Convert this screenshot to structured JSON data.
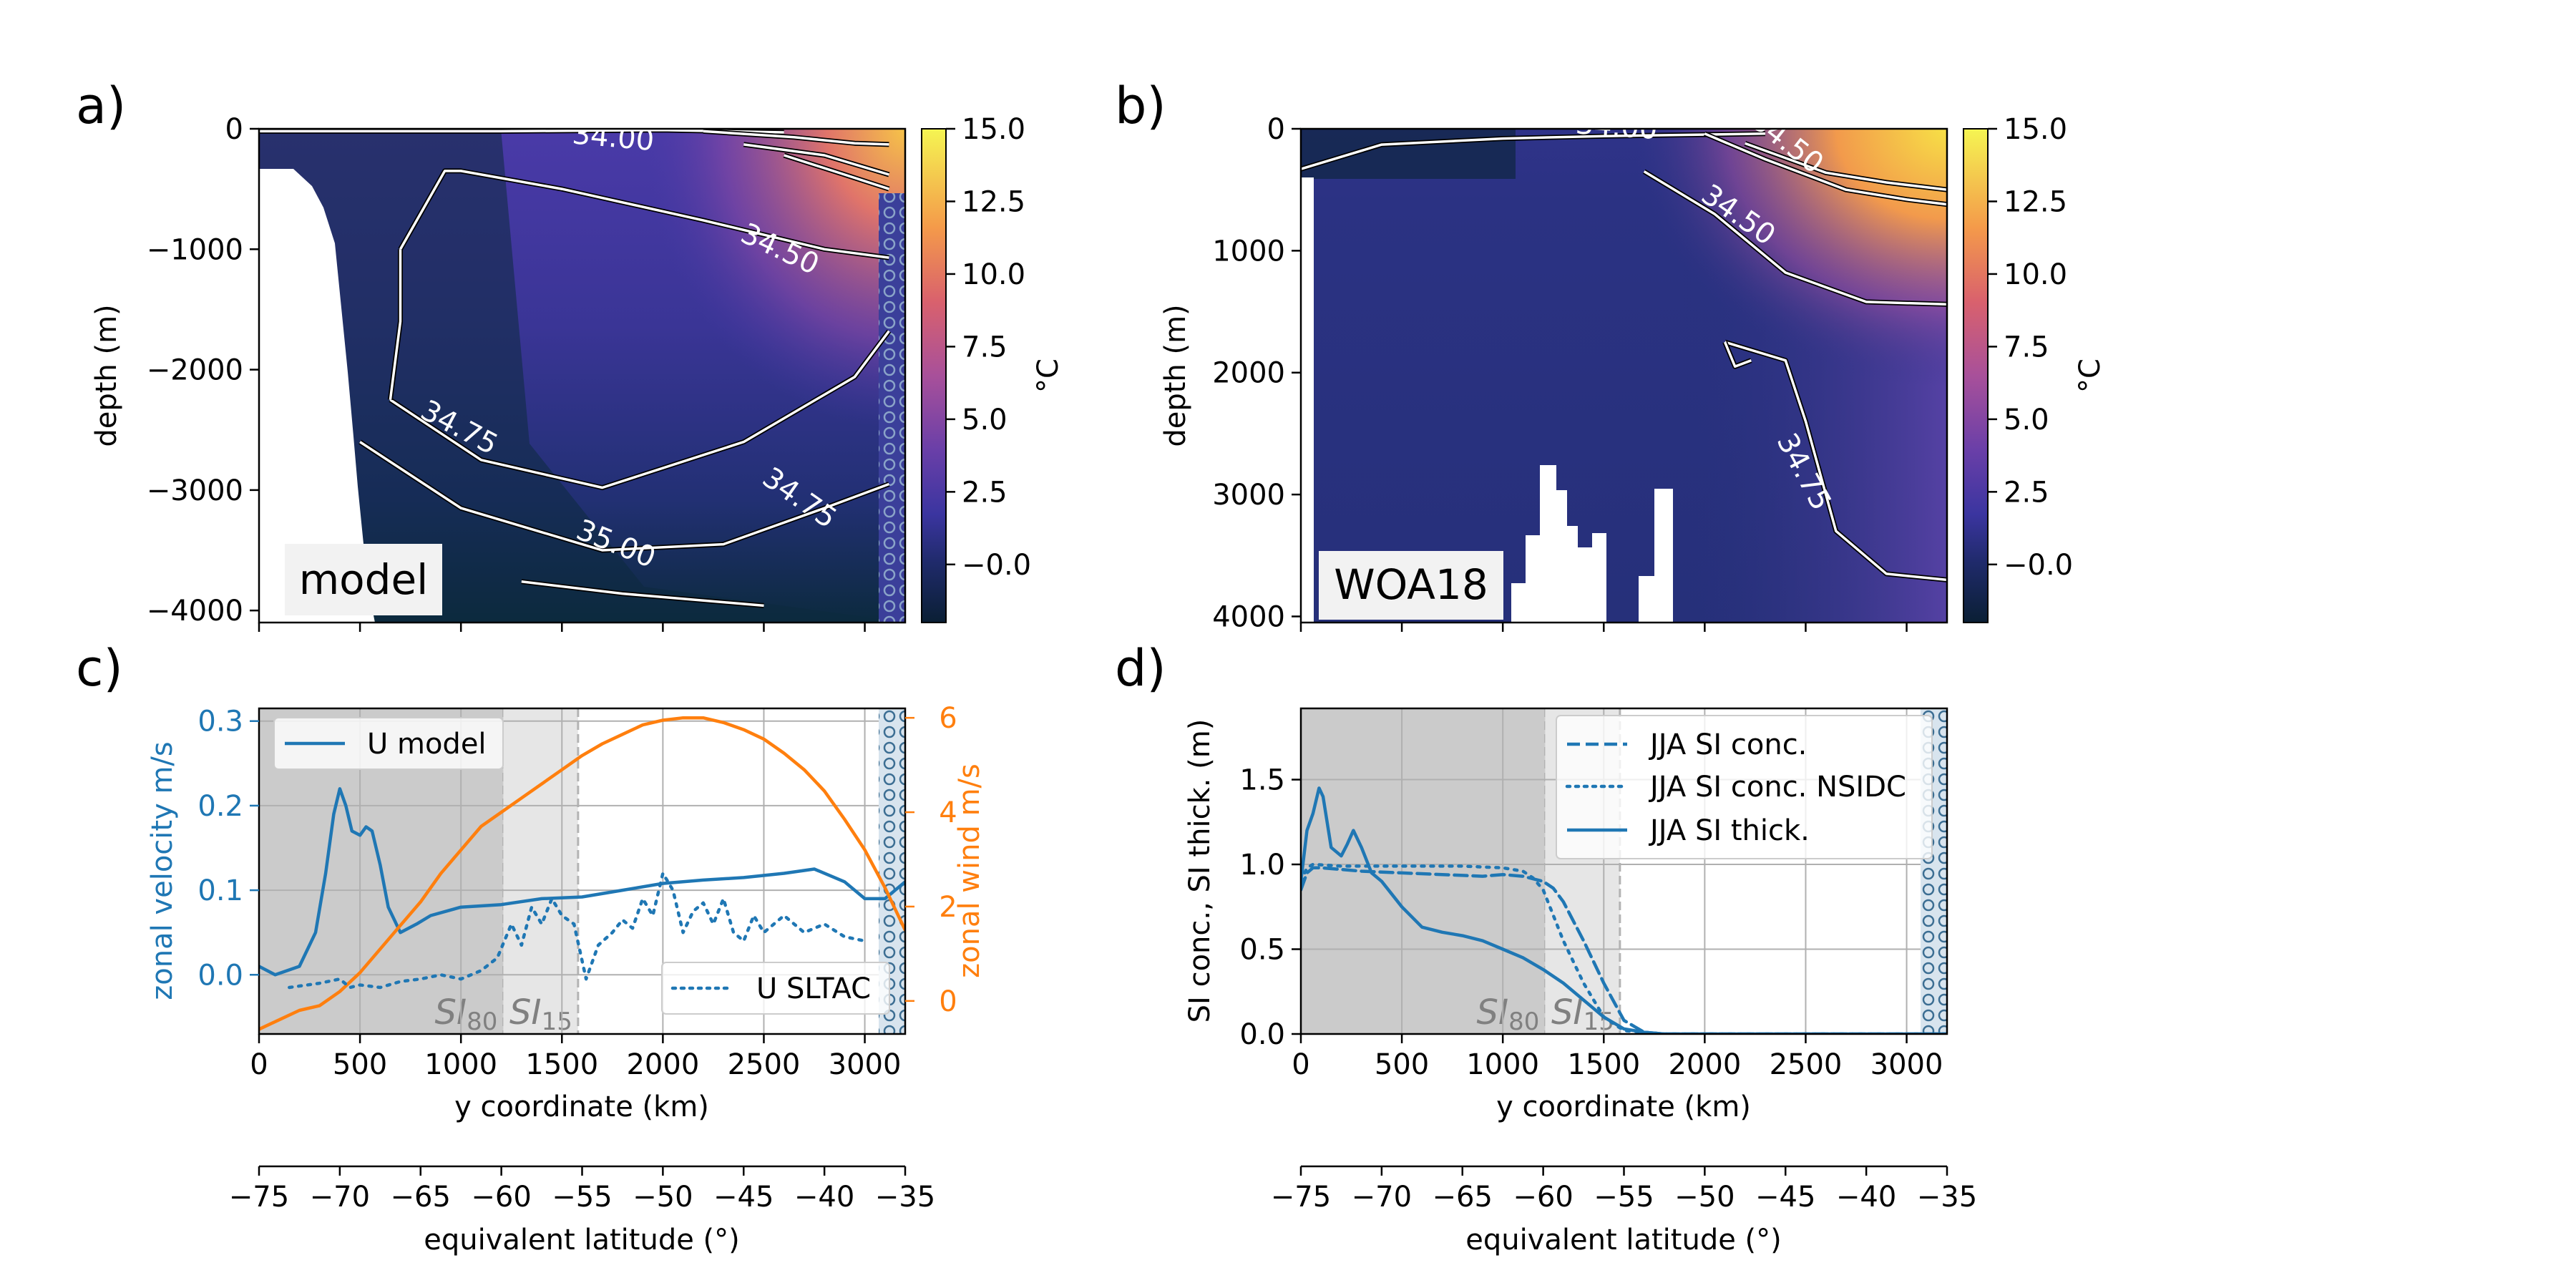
{
  "chart_data": [
    {
      "panel": "a)",
      "type": "heatmap",
      "inset_label": "model",
      "ylabel": "depth (m)",
      "xlim": [
        0,
        3200
      ],
      "ylim": [
        -4100,
        0
      ],
      "yticks": [
        0,
        -1000,
        -2000,
        -3000,
        -4000
      ],
      "ytick_labels": [
        "0",
        "−1000",
        "−2000",
        "−3000",
        "−4000"
      ],
      "colorbar": {
        "label": "°C",
        "range": [
          -2,
          15
        ],
        "ticks": [
          "−0.0",
          "2.5",
          "5.0",
          "7.5",
          "10.0",
          "12.5",
          "15.0"
        ],
        "tick_values": [
          0,
          2.5,
          5,
          7.5,
          10,
          12.5,
          15
        ]
      },
      "contour_labels": [
        {
          "text": "34.00",
          "x": 1750,
          "y": -150,
          "rot": 5
        },
        {
          "text": "34.50",
          "x": 2560,
          "y": -1070,
          "rot": 25
        },
        {
          "text": "34.75",
          "x": 970,
          "y": -2550,
          "rot": 28
        },
        {
          "text": "34.75",
          "x": 2650,
          "y": -3130,
          "rot": 35
        },
        {
          "text": "35.00",
          "x": 1750,
          "y": -3520,
          "rot": 22
        }
      ],
      "contours": [
        [
          [
            0,
            -20
          ],
          [
            500,
            -20
          ],
          [
            1200,
            -20
          ],
          [
            2000,
            -10
          ],
          [
            2600,
            -30
          ]
        ],
        [
          [
            2200,
            -20
          ],
          [
            2650,
            -70
          ],
          [
            2950,
            -120
          ],
          [
            3120,
            -130
          ]
        ],
        [
          [
            2400,
            -130
          ],
          [
            2800,
            -220
          ],
          [
            3000,
            -320
          ],
          [
            3120,
            -380
          ]
        ],
        [
          [
            2600,
            -220
          ],
          [
            2900,
            -380
          ],
          [
            3120,
            -500
          ]
        ],
        [
          [
            700,
            -1000
          ],
          [
            920,
            -350
          ],
          [
            1000,
            -350
          ],
          [
            1500,
            -500
          ],
          [
            2200,
            -760
          ],
          [
            2800,
            -1000
          ],
          [
            3120,
            -1070
          ]
        ],
        [
          [
            650,
            -2250
          ],
          [
            1100,
            -2750
          ],
          [
            1700,
            -2980
          ],
          [
            2400,
            -2600
          ],
          [
            2950,
            -2060
          ],
          [
            3120,
            -1680
          ]
        ],
        [
          [
            700,
            -1000
          ],
          [
            700,
            -1600
          ],
          [
            650,
            -2250
          ]
        ],
        [
          [
            500,
            -2600
          ],
          [
            1000,
            -3150
          ],
          [
            1700,
            -3500
          ],
          [
            2300,
            -3450
          ],
          [
            2800,
            -3150
          ],
          [
            3120,
            -2950
          ]
        ],
        [
          [
            1300,
            -3760
          ],
          [
            1800,
            -3860
          ],
          [
            2500,
            -3960
          ]
        ]
      ]
    },
    {
      "panel": "b)",
      "type": "heatmap",
      "inset_label": "WOA18",
      "ylabel": "depth (m)",
      "xlim": [
        0,
        3200
      ],
      "ylim": [
        4050,
        0
      ],
      "yticks": [
        0,
        1000,
        2000,
        3000,
        4000
      ],
      "ytick_labels": [
        "0",
        "1000",
        "2000",
        "3000",
        "4000"
      ],
      "colorbar": {
        "label": "°C",
        "range": [
          -2,
          15
        ],
        "ticks": [
          "−0.0",
          "2.5",
          "5.0",
          "7.5",
          "10.0",
          "12.5",
          "15.0"
        ],
        "tick_values": [
          0,
          2.5,
          5,
          7.5,
          10,
          12.5,
          15
        ]
      },
      "contour_labels": [
        {
          "text": "34.00",
          "x": 1560,
          "y": 60,
          "rot": 4
        },
        {
          "text": "34.50",
          "x": 2380,
          "y": 170,
          "rot": 38
        },
        {
          "text": "34.50",
          "x": 2140,
          "y": 770,
          "rot": 35
        },
        {
          "text": "34.75",
          "x": 2450,
          "y": 2850,
          "rot": 62
        }
      ],
      "contours": [
        [
          [
            0,
            330
          ],
          [
            400,
            130
          ],
          [
            1000,
            80
          ],
          [
            1500,
            60
          ],
          [
            1900,
            50
          ],
          [
            2300,
            40
          ]
        ],
        [
          [
            2000,
            40
          ],
          [
            2300,
            250
          ],
          [
            2700,
            500
          ],
          [
            3000,
            580
          ],
          [
            3200,
            620
          ]
        ],
        [
          [
            2200,
            120
          ],
          [
            2600,
            360
          ],
          [
            2900,
            440
          ],
          [
            3200,
            500
          ]
        ],
        [
          [
            1700,
            350
          ],
          [
            2050,
            700
          ],
          [
            2400,
            1180
          ],
          [
            2800,
            1420
          ],
          [
            3200,
            1440
          ]
        ],
        [
          [
            2100,
            1750
          ],
          [
            2400,
            1900
          ],
          [
            2500,
            2400
          ],
          [
            2650,
            3300
          ],
          [
            2900,
            3650
          ],
          [
            3200,
            3700
          ]
        ],
        [
          [
            2100,
            1750
          ],
          [
            2150,
            1950
          ],
          [
            2230,
            1900
          ]
        ]
      ]
    },
    {
      "panel": "c)",
      "type": "line",
      "xlabel": "y coordinate (km)",
      "ylabel": "zonal velocity m/s",
      "ylabel_right": "zonal wind m/s",
      "xlim": [
        0,
        3200
      ],
      "ylim": [
        -0.07,
        0.315
      ],
      "ylim_right": [
        -0.7,
        6.2
      ],
      "xticks": [
        0,
        500,
        1000,
        1500,
        2000,
        2500,
        3000
      ],
      "yticks": [
        0.0,
        0.1,
        0.2,
        0.3
      ],
      "ytick_labels": [
        "0.0",
        "0.1",
        "0.2",
        "0.3"
      ],
      "yticks_right": [
        0,
        2,
        4,
        6
      ],
      "shading": [
        {
          "label": "SI",
          "sub": "80",
          "x": [
            0,
            1210
          ]
        },
        {
          "label": "SI",
          "sub": "15",
          "x": [
            1210,
            1580
          ]
        }
      ],
      "grid": true,
      "legend": [
        {
          "name": "U model",
          "placement": "top-left"
        },
        {
          "name": "U SLTAC",
          "placement": "bottom-right"
        }
      ],
      "series": [
        {
          "name": "U model",
          "axis": "left",
          "color": "#1f77b4",
          "dash": "solid",
          "x": [
            0,
            80,
            200,
            280,
            330,
            370,
            400,
            430,
            460,
            500,
            530,
            560,
            600,
            640,
            700,
            780,
            850,
            1000,
            1200,
            1400,
            1600,
            1800,
            2000,
            2200,
            2400,
            2600,
            2750,
            2900,
            3000,
            3100,
            3200
          ],
          "y": [
            0.01,
            0.0,
            0.01,
            0.05,
            0.12,
            0.19,
            0.22,
            0.2,
            0.17,
            0.165,
            0.175,
            0.17,
            0.13,
            0.08,
            0.05,
            0.06,
            0.07,
            0.08,
            0.083,
            0.09,
            0.092,
            0.1,
            0.108,
            0.112,
            0.115,
            0.12,
            0.125,
            0.11,
            0.09,
            0.09,
            0.11
          ]
        },
        {
          "name": "zonal wind",
          "axis": "right",
          "color": "#ff7f0e",
          "dash": "solid",
          "x": [
            0,
            100,
            200,
            300,
            400,
            500,
            600,
            700,
            800,
            900,
            1000,
            1100,
            1200,
            1300,
            1400,
            1500,
            1600,
            1700,
            1800,
            1900,
            2000,
            2100,
            2200,
            2300,
            2400,
            2500,
            2600,
            2700,
            2800,
            2900,
            3000,
            3100,
            3200
          ],
          "y": [
            -0.6,
            -0.4,
            -0.2,
            -0.1,
            0.2,
            0.6,
            1.1,
            1.6,
            2.1,
            2.7,
            3.2,
            3.7,
            4.0,
            4.3,
            4.6,
            4.9,
            5.2,
            5.45,
            5.65,
            5.85,
            5.95,
            6.0,
            6.0,
            5.9,
            5.75,
            5.55,
            5.25,
            4.9,
            4.45,
            3.85,
            3.2,
            2.4,
            1.5
          ]
        },
        {
          "name": "U SLTAC",
          "axis": "left",
          "color": "#1f77b4",
          "dash": "dotted",
          "x": [
            150,
            300,
            400,
            450,
            500,
            600,
            700,
            800,
            900,
            1000,
            1100,
            1180,
            1250,
            1300,
            1350,
            1400,
            1450,
            1500,
            1560,
            1620,
            1680,
            1750,
            1800,
            1850,
            1900,
            1950,
            2000,
            2050,
            2100,
            2150,
            2200,
            2250,
            2300,
            2350,
            2400,
            2450,
            2500,
            2600,
            2700,
            2800,
            2900,
            3000
          ],
          "y": [
            -0.015,
            -0.01,
            -0.005,
            -0.015,
            -0.012,
            -0.015,
            -0.008,
            -0.005,
            0.0,
            -0.005,
            0.005,
            0.02,
            0.06,
            0.035,
            0.08,
            0.06,
            0.09,
            0.07,
            0.06,
            -0.005,
            0.035,
            0.05,
            0.065,
            0.055,
            0.09,
            0.07,
            0.12,
            0.1,
            0.05,
            0.075,
            0.085,
            0.06,
            0.09,
            0.05,
            0.04,
            0.07,
            0.05,
            0.07,
            0.05,
            0.06,
            0.045,
            0.04
          ]
        }
      ]
    },
    {
      "panel": "d)",
      "type": "line",
      "xlabel": "y coordinate (km)",
      "ylabel": "SI conc., SI thick. (m)",
      "xlim": [
        0,
        3200
      ],
      "ylim": [
        0,
        1.92
      ],
      "xticks": [
        0,
        500,
        1000,
        1500,
        2000,
        2500,
        3000
      ],
      "yticks": [
        0.0,
        0.5,
        1.0,
        1.5
      ],
      "ytick_labels": [
        "0.0",
        "0.5",
        "1.0",
        "1.5"
      ],
      "shading": [
        {
          "label": "SI",
          "sub": "80",
          "x": [
            0,
            1210
          ]
        },
        {
          "label": "SI",
          "sub": "15",
          "x": [
            1210,
            1580
          ]
        }
      ],
      "grid": true,
      "legend_placement": "top-right",
      "series": [
        {
          "name": "JJA SI conc.",
          "color": "#1f77b4",
          "dash": "dashed",
          "x": [
            0,
            30,
            60,
            100,
            200,
            300,
            500,
            700,
            900,
            1000,
            1100,
            1200,
            1250,
            1300,
            1400,
            1500,
            1600,
            1700,
            1800,
            2500,
            3200
          ],
          "y": [
            0.85,
            0.95,
            0.98,
            0.98,
            0.97,
            0.96,
            0.95,
            0.94,
            0.93,
            0.94,
            0.93,
            0.9,
            0.86,
            0.78,
            0.55,
            0.3,
            0.08,
            0.01,
            0.0,
            0.0,
            0.0
          ]
        },
        {
          "name": "JJA SI conc. NSIDC",
          "color": "#1f77b4",
          "dash": "dotted",
          "x": [
            0,
            30,
            60,
            200,
            400,
            600,
            800,
            1000,
            1100,
            1150,
            1200,
            1250,
            1300,
            1400,
            1500,
            1600,
            1700,
            1800,
            2500,
            3200
          ],
          "y": [
            0.9,
            0.98,
            1.0,
            0.99,
            0.99,
            0.99,
            0.99,
            0.98,
            0.96,
            0.92,
            0.85,
            0.7,
            0.55,
            0.3,
            0.1,
            0.02,
            0.01,
            0.0,
            0.0,
            0.0
          ]
        },
        {
          "name": "JJA SI thick.",
          "color": "#1f77b4",
          "dash": "solid",
          "x": [
            0,
            30,
            60,
            90,
            110,
            150,
            200,
            230,
            260,
            300,
            350,
            400,
            500,
            600,
            700,
            800,
            900,
            1000,
            1100,
            1200,
            1300,
            1400,
            1500,
            1600,
            1700,
            1800,
            2500,
            3200
          ],
          "y": [
            0.9,
            1.2,
            1.3,
            1.45,
            1.4,
            1.1,
            1.05,
            1.12,
            1.2,
            1.1,
            0.95,
            0.9,
            0.75,
            0.63,
            0.6,
            0.58,
            0.55,
            0.5,
            0.45,
            0.38,
            0.3,
            0.2,
            0.1,
            0.03,
            0.01,
            0.0,
            0.0,
            0.0
          ]
        }
      ]
    },
    {
      "panel": "c-lat",
      "type": "axis",
      "xlabel": "equivalent latitude (°)",
      "xlim": [
        -75,
        -35
      ],
      "xtick_labels": [
        "−75",
        "−70",
        "−65",
        "−60",
        "−55",
        "−50",
        "−45",
        "−40",
        "−35"
      ]
    },
    {
      "panel": "d-lat",
      "type": "axis",
      "xlabel": "equivalent latitude (°)",
      "xlim": [
        -75,
        -35
      ],
      "xtick_labels": [
        "−75",
        "−70",
        "−65",
        "−60",
        "−55",
        "−50",
        "−45",
        "−40",
        "−35"
      ]
    }
  ],
  "colors": {
    "u_model": "#1f77b4",
    "wind": "#ff7f0e",
    "shade_dark": "#cbcbcb",
    "shade_light": "#e6e6e6",
    "hatch": "#5b87a8"
  }
}
